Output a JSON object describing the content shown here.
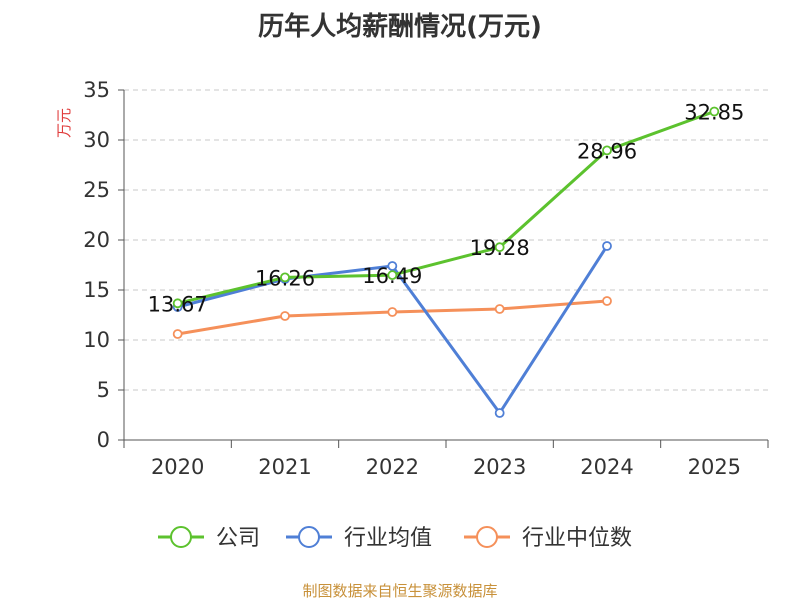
{
  "chart_data": {
    "type": "line",
    "title": "历年人均薪酬情况(万元)",
    "ylabel": "万元",
    "categories": [
      "2020",
      "2021",
      "2022",
      "2023",
      "2024",
      "2025"
    ],
    "ylim": [
      0,
      35
    ],
    "yticks": [
      0,
      5,
      10,
      15,
      20,
      25,
      30,
      35
    ],
    "grid": true,
    "legend_position": "bottom",
    "series": [
      {
        "name": "公司",
        "color": "#5cc22e",
        "values": [
          13.67,
          16.26,
          16.49,
          19.28,
          28.96,
          32.85
        ],
        "labels": [
          "13.67",
          "16.26",
          "16.49",
          "19.28",
          "28.96",
          "32.85"
        ]
      },
      {
        "name": "行业均值",
        "color": "#4f7fd6",
        "values": [
          13.3,
          16.1,
          17.4,
          2.7,
          19.4,
          null
        ],
        "labels": []
      },
      {
        "name": "行业中位数",
        "color": "#f5905a",
        "values": [
          10.6,
          12.4,
          12.8,
          13.1,
          13.9,
          null
        ],
        "labels": []
      }
    ]
  },
  "footer": {
    "source": "制图数据来自恒生聚源数据库"
  }
}
